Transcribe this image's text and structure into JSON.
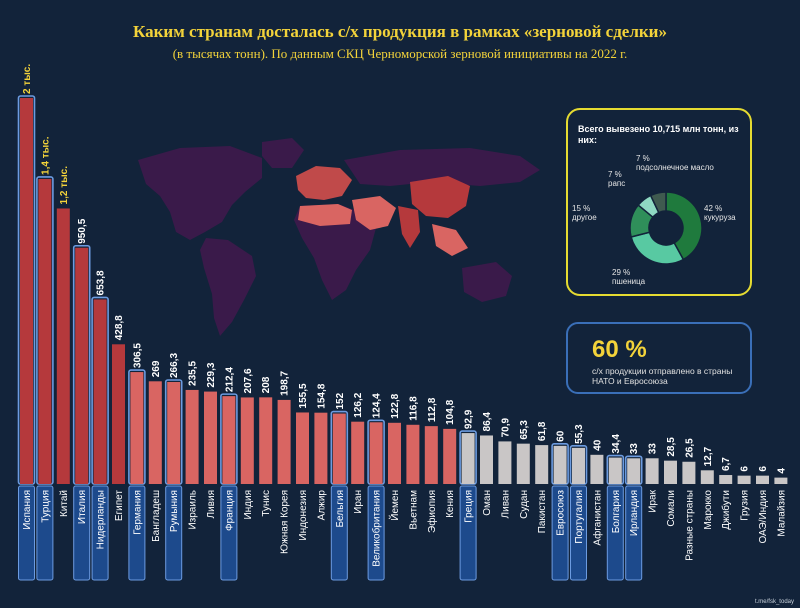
{
  "title": "Каким странам досталась с/х продукция в рамках «зерновой сделки»",
  "subtitle": "(в тысячах тонн). По данным СКЦ Черноморской зерновой инициативы на 2022 г.",
  "chart_data": {
    "type": "bar",
    "categories": [
      "Испания",
      "Турция",
      "Китай",
      "Италия",
      "Нидерланды",
      "Египет",
      "Германия",
      "Бангладеш",
      "Румыния",
      "Израиль",
      "Ливия",
      "Франция",
      "Индия",
      "Тунис",
      "Южная Корея",
      "Индонезия",
      "Алжир",
      "Бельгия",
      "Иран",
      "Великобритания",
      "Йемен",
      "Вьетнам",
      "Эфиопия",
      "Кения",
      "Греция",
      "Оман",
      "Ливан",
      "Судан",
      "Пакистан",
      "Евросоюз",
      "Португалия",
      "Афганистан",
      "Болгария",
      "Ирландия",
      "Ирак",
      "Сомали",
      "Разные страны",
      "Марокко",
      "Джибути",
      "Грузия",
      "ОАЭ/Индия",
      "Малайзия"
    ],
    "values": [
      2000,
      1400,
      1200,
      950.5,
      653.8,
      428.8,
      306.5,
      269,
      266.3,
      235.5,
      229.3,
      212.4,
      207.6,
      208,
      198.7,
      155.5,
      154.8,
      152,
      126.2,
      124.4,
      122.8,
      116.8,
      112.8,
      104.8,
      92.9,
      86.4,
      70.9,
      65.3,
      61.8,
      60,
      55.3,
      40,
      34.4,
      33,
      33,
      28.5,
      26.5,
      12.7,
      6.7,
      6,
      6,
      4
    ],
    "value_labels": [
      "2 тыс.",
      "1,4 тыс.",
      "1,2 тыс.",
      "950,5",
      "653,8",
      "428,8",
      "306,5",
      "269",
      "266,3",
      "235,5",
      "229,3",
      "212,4",
      "207,6",
      "208",
      "198,7",
      "155,5",
      "154,8",
      "152",
      "126,2",
      "124,4",
      "122,8",
      "116,8",
      "112,8",
      "104,8",
      "92,9",
      "86,4",
      "70,9",
      "65,3",
      "61,8",
      "60",
      "55,3",
      "40",
      "34,4",
      "33",
      "33",
      "28,5",
      "26,5",
      "12,7",
      "6,7",
      "6",
      "6",
      "4"
    ],
    "nato_eu_highlight": [
      true,
      true,
      false,
      true,
      true,
      false,
      true,
      false,
      true,
      false,
      false,
      true,
      false,
      false,
      false,
      false,
      false,
      true,
      false,
      true,
      false,
      false,
      false,
      false,
      true,
      false,
      false,
      false,
      false,
      true,
      true,
      false,
      true,
      true,
      false,
      false,
      false,
      false,
      false,
      false,
      false,
      false
    ],
    "colors": {
      "top": "#b5393c",
      "mid": "#d96562",
      "low": "#c9c6c6",
      "label_bg": "#1d4a8c",
      "label_border": "#6c9be0",
      "label_text": "#ffffff",
      "value_top": "#f3d33a",
      "value_rest": "#ffffff"
    }
  },
  "crop_pie": {
    "title": "Всего вывезено 10,715 млн тонн, из них:",
    "slices": [
      {
        "value": 42,
        "label": "42 %",
        "name": "кукуруза",
        "color": "#1f7a3d"
      },
      {
        "value": 29,
        "label": "29 %",
        "name": "пшеница",
        "color": "#58c9a2"
      },
      {
        "value": 15,
        "label": "15 %",
        "name": "другое",
        "color": "#2f8f5a"
      },
      {
        "value": 7,
        "label": "7 %",
        "name": "рапс",
        "color": "#8fd9c2"
      },
      {
        "value": 7,
        "label": "7 %",
        "name": "подсолнечное масло",
        "color": "#3f5a4f"
      }
    ]
  },
  "nato_share": {
    "value": "60 %",
    "text": "с/х продукции отправлено в страны НАТО и Евросоюза"
  },
  "footer": "t.me/fsk_today"
}
